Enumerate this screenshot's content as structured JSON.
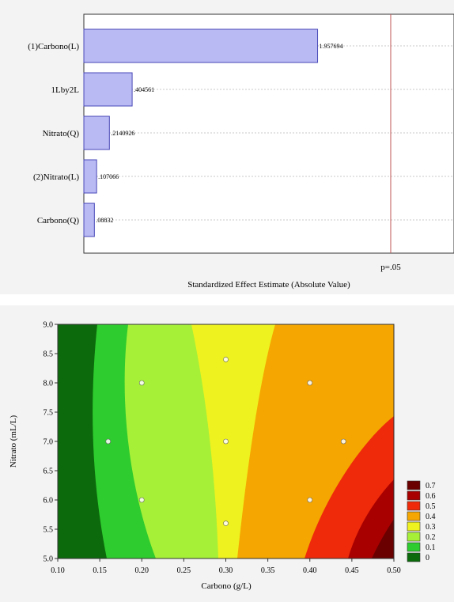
{
  "chart_data": [
    {
      "type": "bar",
      "orientation": "horizontal",
      "categories": [
        "(1)Carbono(L)",
        "1Lby2L",
        "Nitrato(Q)",
        "(2)Nitrato(L)",
        "Carbono(Q)"
      ],
      "values": [
        1.957694,
        0.404561,
        0.2140926,
        0.107066,
        0.08832
      ],
      "value_labels": [
        "1.957694",
        ".404561",
        ".2140926",
        ".107066",
        ".08832"
      ],
      "xlabel": "Standardized Effect Estimate (Absolute Value)",
      "reference_line": {
        "label": "p=.05",
        "value": 2.57
      },
      "xlim": [
        0,
        3.1
      ],
      "bar_color": "#b9b9f3",
      "bar_edge_color": "#4848b8",
      "reference_color": "#c05555",
      "grid": true
    },
    {
      "type": "contour",
      "xlabel": "Carbono (g/L)",
      "ylabel": "Nitrato (mL/L)",
      "xlim": [
        0.1,
        0.5
      ],
      "ylim": [
        5.0,
        9.0
      ],
      "x_ticks": [
        "0.10",
        "0.15",
        "0.20",
        "0.25",
        "0.30",
        "0.35",
        "0.40",
        "0.45",
        "0.50"
      ],
      "y_ticks": [
        "5.0",
        "5.5",
        "6.0",
        "6.5",
        "7.0",
        "7.5",
        "8.0",
        "8.5",
        "9.0"
      ],
      "legend": [
        {
          "label": "0.7",
          "color": "#6a0000"
        },
        {
          "label": "0.6",
          "color": "#a80000"
        },
        {
          "label": "0.5",
          "color": "#ee2a0a"
        },
        {
          "label": "0.4",
          "color": "#f5a600"
        },
        {
          "label": "0.3",
          "color": "#eef21e"
        },
        {
          "label": "0.2",
          "color": "#a6f038"
        },
        {
          "label": "0.1",
          "color": "#2ecc2e"
        },
        {
          "label": "0",
          "color": "#0c6a0c"
        }
      ],
      "design_points": [
        {
          "x": 0.16,
          "y": 7.0
        },
        {
          "x": 0.2,
          "y": 8.0
        },
        {
          "x": 0.2,
          "y": 6.0
        },
        {
          "x": 0.3,
          "y": 8.4
        },
        {
          "x": 0.3,
          "y": 7.0
        },
        {
          "x": 0.3,
          "y": 5.6
        },
        {
          "x": 0.4,
          "y": 8.0
        },
        {
          "x": 0.4,
          "y": 6.0
        },
        {
          "x": 0.44,
          "y": 7.0
        }
      ]
    }
  ]
}
